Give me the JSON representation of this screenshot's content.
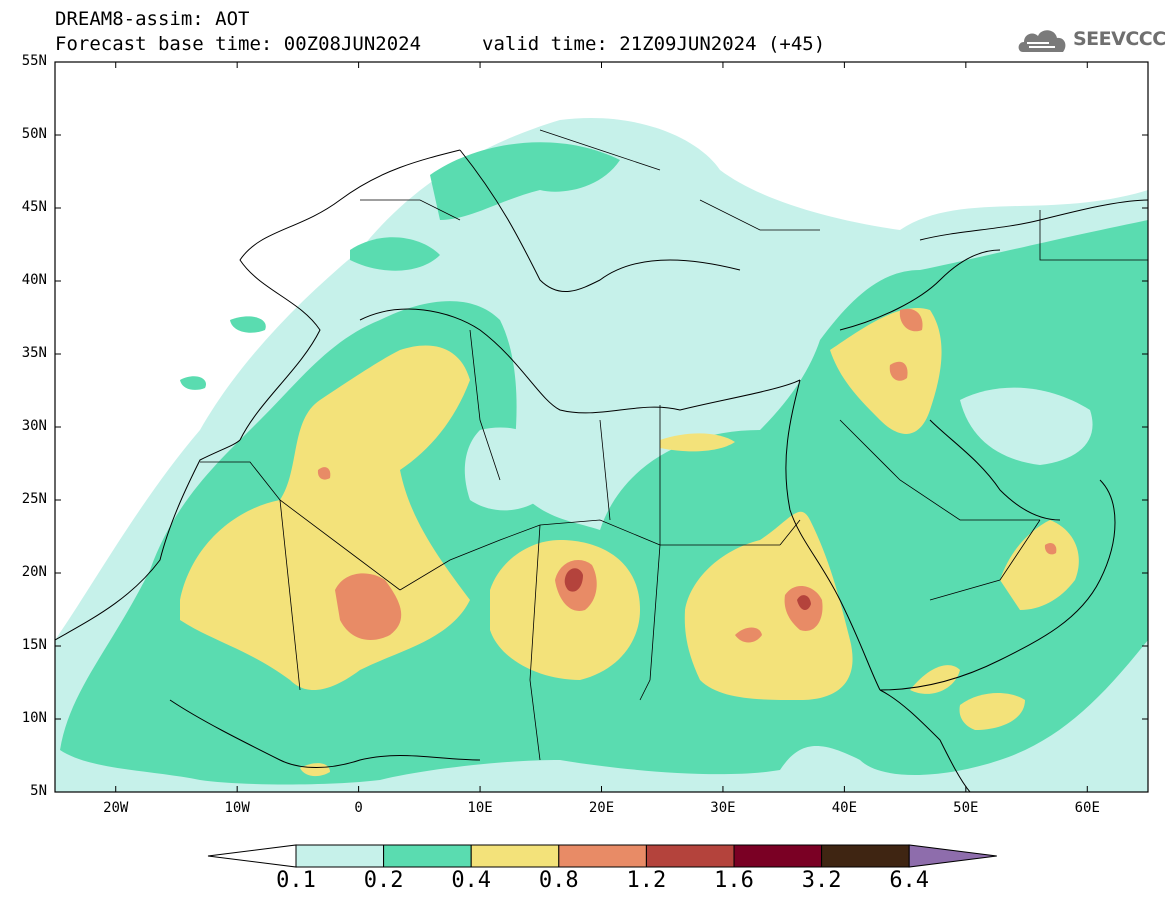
{
  "header": {
    "title": "DREAM8-assim: AOT",
    "base_time": "Forecast base time: 00Z08JUN2024",
    "valid_time": "valid time: 21Z09JUN2024 (+45)"
  },
  "logo": {
    "name": "cloud-logo-icon",
    "text": "SEEVCCC"
  },
  "axes": {
    "y_labels": [
      "55N",
      "50N",
      "45N",
      "40N",
      "35N",
      "30N",
      "25N",
      "20N",
      "15N",
      "10N",
      "5N"
    ],
    "x_labels": [
      "20W",
      "10W",
      "0",
      "10E",
      "20E",
      "30E",
      "40E",
      "50E",
      "60E"
    ],
    "lon_range": [
      -25,
      65
    ],
    "lat_range": [
      5,
      55
    ]
  },
  "colorbar": {
    "labels": [
      "0.1",
      "0.2",
      "0.4",
      "0.8",
      "1.2",
      "1.6",
      "3.2",
      "6.4"
    ],
    "colors": [
      "#c6f1ea",
      "#5adcb0",
      "#f3e27a",
      "#e88b66",
      "#b4433c",
      "#7a0024",
      "#3f2512",
      "#8e6dac"
    ]
  },
  "colors": {
    "level_0_1": "#c6f1ea",
    "level_0_2": "#5adcb0",
    "level_0_4": "#f3e27a",
    "level_0_8": "#e88b66",
    "level_1_2": "#b4433c"
  }
}
